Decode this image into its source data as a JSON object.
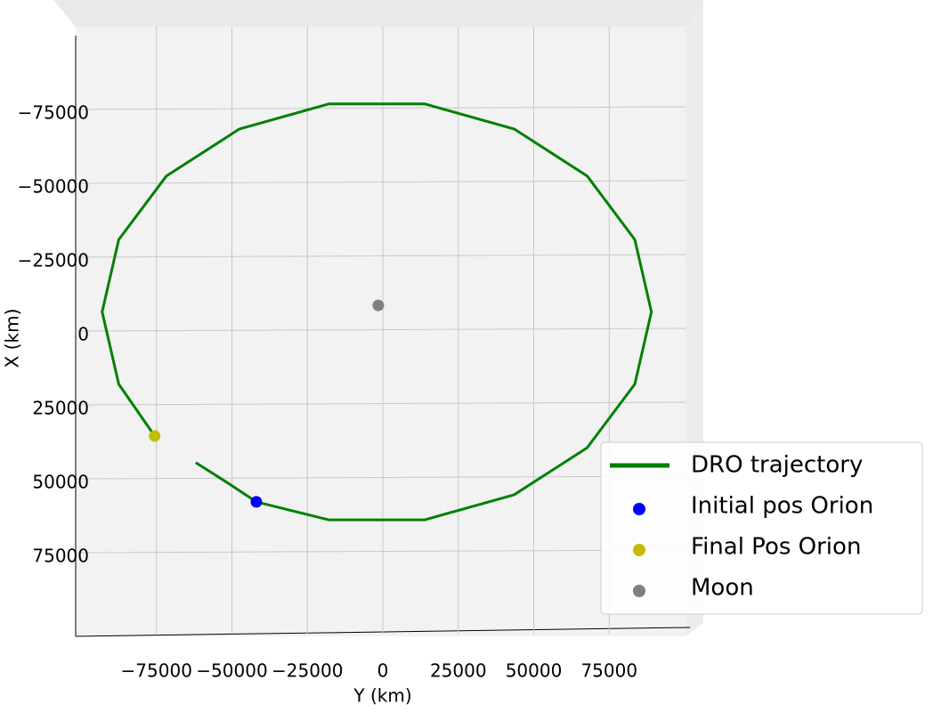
{
  "chart_data": {
    "type": "line",
    "xlabel": "Y (km)",
    "ylabel": "X (km)",
    "xlim": [
      -100000,
      100000
    ],
    "ylim": [
      -100000,
      100000
    ],
    "y_inverted": true,
    "xticks": [
      {
        "value": -75000,
        "label": "−75000"
      },
      {
        "value": -50000,
        "label": "−50000"
      },
      {
        "value": -25000,
        "label": "−25000"
      },
      0,
      25000,
      50000,
      75000
    ],
    "yticks": [
      {
        "value": -75000,
        "label": "−75000"
      },
      {
        "value": -50000,
        "label": "−50000"
      },
      {
        "value": -25000,
        "label": "−25000"
      },
      0,
      25000,
      50000,
      75000
    ],
    "grid": true,
    "legend": "lower right",
    "series": [
      {
        "name": "DRO trajectory",
        "type": "line",
        "color": "#008000",
        "x": [
          -62000,
          -52000,
          -41900,
          -17800,
          13800,
          43500,
          67700,
          83500,
          89000,
          83500,
          67700,
          43500,
          13800,
          -17800,
          -47500,
          -71700,
          -87500,
          -93000,
          -87500,
          -75600
        ],
        "values": [
          44500,
          51000,
          57800,
          63900,
          63900,
          55400,
          39500,
          17950,
          -6500,
          -30950,
          -52500,
          -68400,
          -76900,
          -76900,
          -68400,
          -52500,
          -30950,
          -6500,
          17950,
          35500
        ]
      },
      {
        "name": "Initial pos Orion",
        "type": "scatter",
        "color": "#0000ff",
        "x": [
          -41900
        ],
        "values": [
          57800
        ]
      },
      {
        "name": "Final Pos Orion",
        "type": "scatter",
        "color": "#bfbf00",
        "x": [
          -75600
        ],
        "values": [
          35500
        ]
      },
      {
        "name": "Moon",
        "type": "scatter",
        "color": "#808080",
        "x": [
          -1500
        ],
        "values": [
          -8700
        ]
      }
    ]
  }
}
